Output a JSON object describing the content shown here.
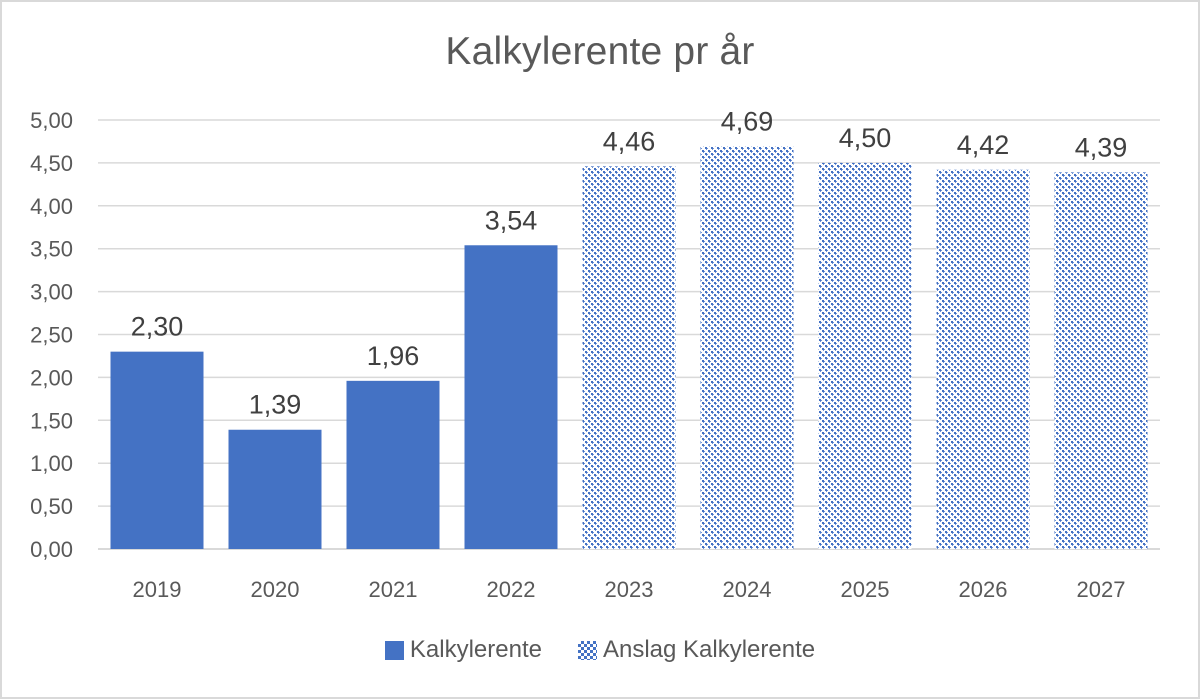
{
  "chart_data": {
    "type": "bar",
    "title": "Kalkylerente pr år",
    "xlabel": "",
    "ylabel": "",
    "ylim": [
      0,
      5
    ],
    "yticks": [
      "0,00",
      "0,50",
      "1,00",
      "1,50",
      "2,00",
      "2,50",
      "3,00",
      "3,50",
      "4,00",
      "4,50",
      "5,00"
    ],
    "grid": true,
    "legend_position": "bottom",
    "categories": [
      "2019",
      "2020",
      "2021",
      "2022",
      "2023",
      "2024",
      "2025",
      "2026",
      "2027"
    ],
    "series": [
      {
        "name": "Kalkylerente",
        "fill": "solid",
        "color": "#4472c4",
        "values": [
          2.3,
          1.39,
          1.96,
          3.54,
          null,
          null,
          null,
          null,
          null
        ],
        "labels": [
          "2,30",
          "1,39",
          "1,96",
          "3,54",
          null,
          null,
          null,
          null,
          null
        ]
      },
      {
        "name": "Anslag Kalkylerente",
        "fill": "pattern",
        "color": "#4472c4",
        "values": [
          null,
          null,
          null,
          null,
          4.46,
          4.69,
          4.5,
          4.42,
          4.39
        ],
        "labels": [
          null,
          null,
          null,
          null,
          "4,46",
          "4,69",
          "4,50",
          "4,42",
          "4,39"
        ]
      }
    ]
  },
  "legend": {
    "items": [
      {
        "label": "Kalkylerente",
        "swatch": "solid"
      },
      {
        "label": "Anslag Kalkylerente",
        "swatch": "pattern"
      }
    ]
  },
  "colors": {
    "bar": "#4472c4",
    "gridline": "#d9d9d9",
    "axis_text": "#595959",
    "label_text": "#404040",
    "frame": "#d9d9d9"
  }
}
